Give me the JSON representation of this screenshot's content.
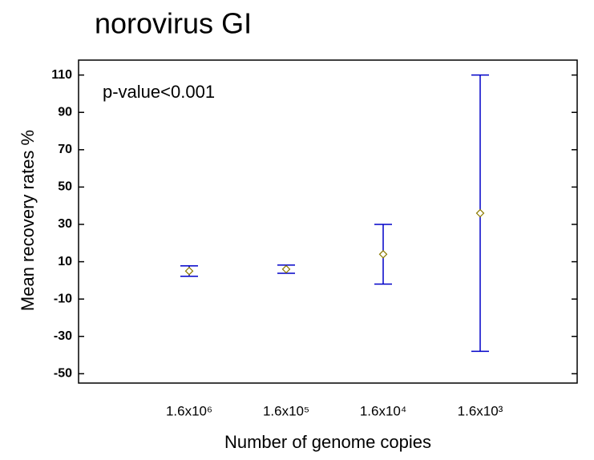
{
  "chart_data": {
    "type": "errorbar",
    "title": "norovirus GI",
    "annotation": "p-value<0.001",
    "xlabel": "Number of genome copies",
    "ylabel": "Mean recovery rates %",
    "categories": [
      "1.6x10⁶",
      "1.6x10⁵",
      "1.6x10⁴",
      "1.6x10³"
    ],
    "series": [
      {
        "values": [
          5,
          6,
          14,
          36
        ],
        "errors": [
          2.8,
          2.2,
          16,
          74
        ],
        "color": "#0000c8",
        "marker_color": "#8c7a00"
      }
    ],
    "ylim": [
      -55,
      118
    ],
    "yticks": [
      -50,
      -30,
      -10,
      10,
      30,
      50,
      70,
      90,
      110
    ]
  }
}
